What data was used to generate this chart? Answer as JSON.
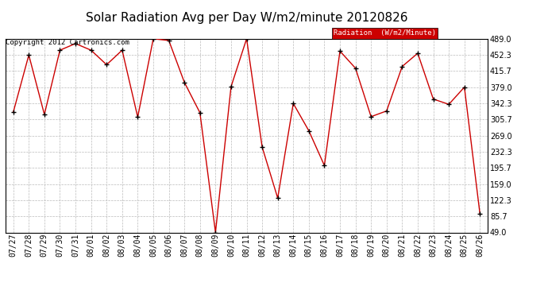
{
  "title": "Solar Radiation Avg per Day W/m2/minute 20120826",
  "copyright": "Copyright 2012 Cartronics.com",
  "legend_label": "Radiation  (W/m2/Minute)",
  "dates": [
    "07/27",
    "07/28",
    "07/29",
    "07/30",
    "07/31",
    "08/01",
    "08/02",
    "08/03",
    "08/04",
    "08/05",
    "08/06",
    "08/07",
    "08/08",
    "08/09",
    "08/10",
    "08/11",
    "08/12",
    "08/13",
    "08/14",
    "08/15",
    "08/16",
    "08/17",
    "08/18",
    "08/19",
    "08/20",
    "08/21",
    "08/22",
    "08/23",
    "08/24",
    "08/25",
    "08/26"
  ],
  "values": [
    322,
    452,
    317,
    463,
    478,
    463,
    430,
    463,
    311,
    489,
    485,
    390,
    321,
    49,
    380,
    489,
    243,
    127,
    342,
    280,
    201,
    461,
    422,
    312,
    325,
    426,
    456,
    352,
    340,
    379,
    91
  ],
  "ylim": [
    49.0,
    489.0
  ],
  "yticks": [
    49.0,
    85.7,
    122.3,
    159.0,
    195.7,
    232.3,
    269.0,
    305.7,
    342.3,
    379.0,
    415.7,
    452.3,
    489.0
  ],
  "line_color": "#cc0000",
  "marker_color": "#000000",
  "bg_color": "#ffffff",
  "plot_bg_color": "#ffffff",
  "grid_color": "#bbbbbb",
  "title_fontsize": 11,
  "tick_fontsize": 7,
  "legend_bg": "#cc0000",
  "legend_fg": "#ffffff"
}
